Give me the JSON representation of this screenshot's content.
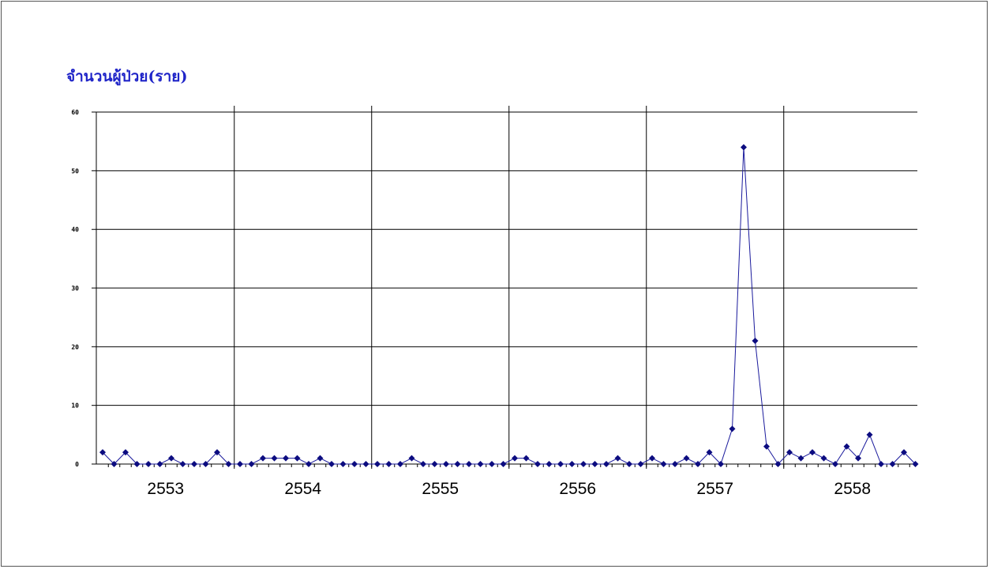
{
  "chart_data": {
    "type": "line",
    "title": "จำนวนผู้ป่วย(ราย)",
    "xlabel": "",
    "ylabel": "",
    "ylim": [
      0,
      60
    ],
    "yticks": [
      "0",
      "10",
      "20",
      "30",
      "40",
      "50",
      "60"
    ],
    "year_labels": [
      "2553",
      "2554",
      "2555",
      "2556",
      "2557",
      "2558"
    ],
    "grid": true,
    "colors": {
      "line": "#1a1a9c",
      "marker": "#0c0c80",
      "title": "#1f24c8"
    },
    "series": [
      {
        "values": [
          2,
          0,
          2,
          0,
          0,
          0,
          1,
          0,
          0,
          0,
          2,
          0,
          0,
          0,
          1,
          1,
          1,
          1,
          0,
          1,
          0,
          0,
          0,
          0,
          0,
          0,
          0,
          1,
          0,
          0,
          0,
          0,
          0,
          0,
          0,
          0,
          1,
          1,
          0,
          0,
          0,
          0,
          0,
          0,
          0,
          1,
          0,
          0,
          1,
          0,
          0,
          1,
          0,
          2,
          0,
          6,
          54,
          21,
          3,
          0,
          2,
          1,
          2,
          1,
          0,
          3,
          1,
          5,
          0,
          0,
          2,
          0
        ]
      }
    ]
  }
}
